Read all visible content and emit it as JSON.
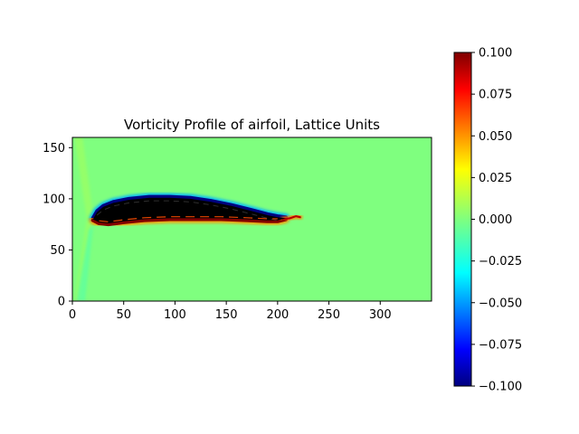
{
  "chart_data": {
    "type": "heatmap",
    "title": "Vorticity Profile of airfoil, Lattice Units",
    "xlabel": "",
    "ylabel": "",
    "xlim": [
      0,
      350
    ],
    "ylim": [
      0,
      160
    ],
    "x_ticks": [
      0,
      50,
      100,
      150,
      200,
      250,
      300
    ],
    "y_ticks": [
      0,
      50,
      100,
      150
    ],
    "grid": false,
    "colormap": "jet",
    "background_value": 0.0,
    "colorbar": {
      "range": [
        -0.1,
        0.1
      ],
      "ticks": [
        0.1,
        0.075,
        0.05,
        0.025,
        0.0,
        -0.025,
        -0.05,
        -0.075,
        -0.1
      ],
      "tick_labels": [
        "0.100",
        "0.075",
        "0.050",
        "0.025",
        "0.000",
        "−0.025",
        "−0.050",
        "−0.075",
        "−0.100"
      ],
      "placement": "right"
    },
    "airfoil": {
      "fill_color": "#000000",
      "upper_surface": [
        [
          20,
          80
        ],
        [
          24,
          87
        ],
        [
          30,
          92
        ],
        [
          40,
          96
        ],
        [
          55,
          99
        ],
        [
          75,
          101
        ],
        [
          95,
          101
        ],
        [
          115,
          100
        ],
        [
          135,
          97
        ],
        [
          155,
          93
        ],
        [
          175,
          88
        ],
        [
          190,
          84
        ],
        [
          200,
          82
        ],
        [
          208,
          81
        ]
      ],
      "lower_surface": [
        [
          20,
          80
        ],
        [
          26,
          77
        ],
        [
          35,
          76
        ],
        [
          50,
          78
        ],
        [
          70,
          80
        ],
        [
          95,
          81
        ],
        [
          120,
          81
        ],
        [
          145,
          81
        ],
        [
          170,
          80
        ],
        [
          190,
          79
        ],
        [
          200,
          79
        ],
        [
          208,
          81
        ]
      ],
      "upper_boundary_vorticity": -0.1,
      "lower_boundary_vorticity": 0.1
    },
    "wake_trail": [
      [
        205,
        80
      ],
      [
        212,
        81
      ],
      [
        218,
        83
      ],
      [
        222,
        82
      ]
    ]
  }
}
